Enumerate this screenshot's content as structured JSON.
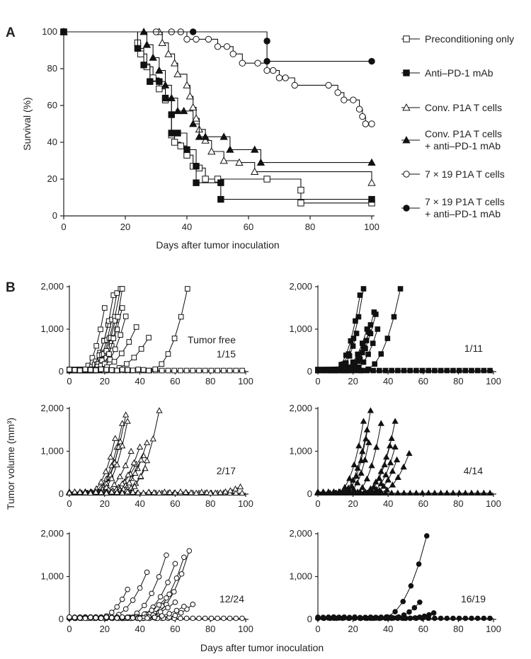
{
  "panel_labels": {
    "a": "A",
    "b": "B"
  },
  "chart_data": [
    {
      "id": "A",
      "type": "line",
      "subtype": "kaplan-meier",
      "xlabel": "Days after tumor inoculation",
      "ylabel": "Survival (%)",
      "xlim": [
        0,
        100
      ],
      "ylim": [
        0,
        100
      ],
      "xticks": [
        "0",
        "20",
        "40",
        "60",
        "80",
        "100"
      ],
      "yticks": [
        "0",
        "20",
        "40",
        "60",
        "80",
        "100"
      ],
      "legend_position": "right",
      "series": [
        {
          "name": "Preconditioning only",
          "marker": "square",
          "filled": false,
          "points": [
            [
              0,
              100
            ],
            [
              24,
              94
            ],
            [
              25,
              88
            ],
            [
              27,
              81
            ],
            [
              29,
              75
            ],
            [
              31,
              69
            ],
            [
              33,
              63
            ],
            [
              35,
              44
            ],
            [
              36,
              40
            ],
            [
              38,
              38
            ],
            [
              40,
              33
            ],
            [
              42,
              27
            ],
            [
              44,
              26
            ],
            [
              46,
              20
            ],
            [
              50,
              20
            ],
            [
              66,
              20
            ],
            [
              77,
              14
            ],
            [
              77,
              7
            ],
            [
              100,
              7
            ]
          ]
        },
        {
          "name": "Anti–PD-1 mAb",
          "marker": "square",
          "filled": true,
          "points": [
            [
              0,
              100
            ],
            [
              24,
              91
            ],
            [
              26,
              82
            ],
            [
              28,
              73
            ],
            [
              31,
              73
            ],
            [
              33,
              64
            ],
            [
              35,
              55
            ],
            [
              35,
              45
            ],
            [
              37,
              45
            ],
            [
              40,
              36
            ],
            [
              43,
              27
            ],
            [
              43,
              18
            ],
            [
              51,
              18
            ],
            [
              51,
              9
            ],
            [
              100,
              9
            ]
          ]
        },
        {
          "name": "Conv. P1A T cells",
          "marker": "triangle",
          "filled": false,
          "points": [
            [
              0,
              100
            ],
            [
              31,
              100
            ],
            [
              32,
              94
            ],
            [
              34,
              88
            ],
            [
              36,
              83
            ],
            [
              37,
              77
            ],
            [
              40,
              71
            ],
            [
              41,
              65
            ],
            [
              42,
              59
            ],
            [
              43,
              53
            ],
            [
              44,
              47
            ],
            [
              46,
              41
            ],
            [
              48,
              35
            ],
            [
              52,
              30
            ],
            [
              57,
              29
            ],
            [
              62,
              24
            ],
            [
              100,
              18
            ]
          ]
        },
        {
          "name": "Conv. P1A T cells\n+ anti–PD-1 mAb",
          "marker": "triangle",
          "filled": true,
          "points": [
            [
              0,
              100
            ],
            [
              26,
              100
            ],
            [
              27,
              93
            ],
            [
              29,
              86
            ],
            [
              31,
              79
            ],
            [
              33,
              71
            ],
            [
              35,
              64
            ],
            [
              37,
              57
            ],
            [
              39,
              57
            ],
            [
              42,
              50
            ],
            [
              44,
              43
            ],
            [
              46,
              43
            ],
            [
              52,
              43
            ],
            [
              54,
              36
            ],
            [
              62,
              36
            ],
            [
              64,
              29
            ],
            [
              100,
              29
            ]
          ]
        },
        {
          "name": "7 × 19 P1A T cells",
          "marker": "circle",
          "filled": false,
          "points": [
            [
              0,
              100
            ],
            [
              30,
              100
            ],
            [
              35,
              100
            ],
            [
              38,
              100
            ],
            [
              40,
              96
            ],
            [
              43,
              96
            ],
            [
              47,
              96
            ],
            [
              50,
              92
            ],
            [
              53,
              92
            ],
            [
              55,
              88
            ],
            [
              58,
              83
            ],
            [
              63,
              83
            ],
            [
              66,
              79
            ],
            [
              68,
              79
            ],
            [
              70,
              75
            ],
            [
              72,
              75
            ],
            [
              75,
              71
            ],
            [
              86,
              71
            ],
            [
              89,
              67
            ],
            [
              91,
              63
            ],
            [
              94,
              63
            ],
            [
              96,
              58
            ],
            [
              97,
              54
            ],
            [
              98,
              50
            ],
            [
              100,
              50
            ]
          ]
        },
        {
          "name": "7 × 19 P1A T cells\n+ anti–PD-1 mAb",
          "marker": "circle",
          "filled": true,
          "points": [
            [
              0,
              100
            ],
            [
              42,
              100
            ],
            [
              66,
              95
            ],
            [
              66,
              84
            ],
            [
              100,
              84
            ]
          ]
        }
      ]
    },
    {
      "id": "B1",
      "type": "line",
      "xlim": [
        0,
        100
      ],
      "ylim": [
        0,
        2000
      ],
      "xticks": [
        "0",
        "20",
        "40",
        "60",
        "80",
        "100"
      ],
      "yticks": [
        "0",
        "1,000",
        "2,000"
      ],
      "annotation_lines": [
        "Tumor free",
        "1/15"
      ],
      "marker": "square",
      "filled": false,
      "grow_curves": [
        {
          "start": 6,
          "end": 20,
          "vmax": 1500
        },
        {
          "start": 8,
          "end": 22,
          "vmax": 1100
        },
        {
          "start": 9,
          "end": 25,
          "vmax": 1800
        },
        {
          "start": 10,
          "end": 27,
          "vmax": 1850
        },
        {
          "start": 10,
          "end": 29,
          "vmax": 1950
        },
        {
          "start": 11,
          "end": 26,
          "vmax": 1200
        },
        {
          "start": 12,
          "end": 30,
          "vmax": 1500
        },
        {
          "start": 14,
          "end": 32,
          "vmax": 1300
        },
        {
          "start": 15,
          "end": 30,
          "vmax": 1950
        },
        {
          "start": 13,
          "end": 38,
          "vmax": 1050
        },
        {
          "start": 20,
          "end": 45,
          "vmax": 800
        },
        {
          "start": 45,
          "end": 67,
          "vmax": 1950
        }
      ],
      "flat_end": 100
    },
    {
      "id": "B2",
      "type": "line",
      "xlim": [
        0,
        100
      ],
      "ylim": [
        0,
        2000
      ],
      "xticks": [
        "0",
        "20",
        "40",
        "60",
        "80",
        "100"
      ],
      "yticks": [
        "0",
        "1,000",
        "2,000"
      ],
      "annotation_lines": [
        "1/11"
      ],
      "marker": "square",
      "filled": true,
      "grow_curves": [
        {
          "start": 8,
          "end": 24,
          "vmax": 1800
        },
        {
          "start": 9,
          "end": 26,
          "vmax": 1950
        },
        {
          "start": 10,
          "end": 22,
          "vmax": 900
        },
        {
          "start": 12,
          "end": 28,
          "vmax": 1000
        },
        {
          "start": 14,
          "end": 32,
          "vmax": 1400
        },
        {
          "start": 15,
          "end": 33,
          "vmax": 1350
        },
        {
          "start": 16,
          "end": 30,
          "vmax": 1100
        },
        {
          "start": 18,
          "end": 34,
          "vmax": 1000
        },
        {
          "start": 25,
          "end": 47,
          "vmax": 1950
        }
      ],
      "flat_end": 100
    },
    {
      "id": "B3",
      "type": "line",
      "xlim": [
        0,
        100
      ],
      "ylim": [
        0,
        2000
      ],
      "xticks": [
        "0",
        "20",
        "40",
        "60",
        "80",
        "100"
      ],
      "yticks": [
        "0",
        "1,000",
        "2,000"
      ],
      "annotation_lines": [
        "2/17"
      ],
      "marker": "triangle",
      "filled": false,
      "grow_curves": [
        {
          "start": 10,
          "end": 26,
          "vmax": 1300
        },
        {
          "start": 12,
          "end": 30,
          "vmax": 1650
        },
        {
          "start": 13,
          "end": 32,
          "vmax": 1850
        },
        {
          "start": 14,
          "end": 28,
          "vmax": 1100
        },
        {
          "start": 15,
          "end": 33,
          "vmax": 1700
        },
        {
          "start": 16,
          "end": 35,
          "vmax": 1000
        },
        {
          "start": 18,
          "end": 38,
          "vmax": 700
        },
        {
          "start": 20,
          "end": 40,
          "vmax": 1100
        },
        {
          "start": 22,
          "end": 42,
          "vmax": 900
        },
        {
          "start": 24,
          "end": 44,
          "vmax": 1200
        },
        {
          "start": 27,
          "end": 43,
          "vmax": 600
        },
        {
          "start": 30,
          "end": 51,
          "vmax": 1950
        },
        {
          "start": 80,
          "end": 97,
          "vmax": 170
        }
      ],
      "flat_end": 100
    },
    {
      "id": "B4",
      "type": "line",
      "xlim": [
        0,
        100
      ],
      "ylim": [
        0,
        2000
      ],
      "xticks": [
        "0",
        "20",
        "40",
        "60",
        "80",
        "100"
      ],
      "yticks": [
        "0",
        "1,000",
        "2,000"
      ],
      "annotation_lines": [
        "4/14"
      ],
      "marker": "triangle",
      "filled": true,
      "grow_curves": [
        {
          "start": 10,
          "end": 26,
          "vmax": 1700
        },
        {
          "start": 12,
          "end": 28,
          "vmax": 1500
        },
        {
          "start": 14,
          "end": 30,
          "vmax": 1950
        },
        {
          "start": 16,
          "end": 29,
          "vmax": 1200
        },
        {
          "start": 20,
          "end": 36,
          "vmax": 1650
        },
        {
          "start": 24,
          "end": 42,
          "vmax": 1300
        },
        {
          "start": 26,
          "end": 44,
          "vmax": 1700
        },
        {
          "start": 28,
          "end": 44,
          "vmax": 1100
        },
        {
          "start": 30,
          "end": 45,
          "vmax": 800
        },
        {
          "start": 33,
          "end": 52,
          "vmax": 950
        }
      ],
      "flat_end": 100
    },
    {
      "id": "B5",
      "type": "line",
      "xlim": [
        0,
        100
      ],
      "ylim": [
        0,
        2000
      ],
      "xticks": [
        "0",
        "20",
        "40",
        "60",
        "80",
        "100"
      ],
      "yticks": [
        "0",
        "1,000",
        "2,000"
      ],
      "annotation_lines": [
        "12/24"
      ],
      "marker": "circle",
      "filled": false,
      "grow_curves": [
        {
          "start": 15,
          "end": 33,
          "vmax": 700
        },
        {
          "start": 20,
          "end": 44,
          "vmax": 1100
        },
        {
          "start": 30,
          "end": 55,
          "vmax": 1500
        },
        {
          "start": 35,
          "end": 60,
          "vmax": 1300
        },
        {
          "start": 40,
          "end": 65,
          "vmax": 1450
        },
        {
          "start": 42,
          "end": 68,
          "vmax": 1600
        },
        {
          "start": 30,
          "end": 55,
          "vmax": 500
        },
        {
          "start": 35,
          "end": 60,
          "vmax": 400
        },
        {
          "start": 50,
          "end": 70,
          "vmax": 350
        },
        {
          "start": 40,
          "end": 65,
          "vmax": 300
        }
      ],
      "flat_end": 100
    },
    {
      "id": "B6",
      "type": "line",
      "xlim": [
        0,
        100
      ],
      "ylim": [
        0,
        2000
      ],
      "xticks": [
        "0",
        "20",
        "40",
        "60",
        "80",
        "100"
      ],
      "yticks": [
        "0",
        "1,000",
        "2,000"
      ],
      "annotation_lines": [
        "16/19"
      ],
      "marker": "circle",
      "filled": true,
      "grow_curves": [
        {
          "start": 35,
          "end": 62,
          "vmax": 1950
        },
        {
          "start": 40,
          "end": 58,
          "vmax": 400
        },
        {
          "start": 50,
          "end": 66,
          "vmax": 150
        }
      ],
      "flat_end": 100
    }
  ],
  "panel_b_ylabel": "Tumor volume (mm³)",
  "panel_b_xlabel": "Days after tumor inoculation"
}
